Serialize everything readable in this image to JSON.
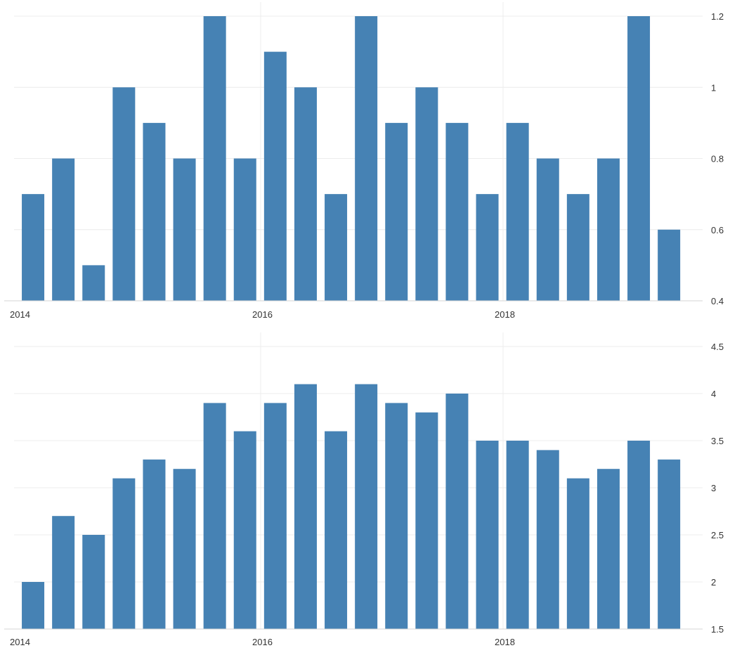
{
  "chart_data": [
    {
      "type": "bar",
      "x": [
        "2014Q1",
        "2014Q2",
        "2014Q3",
        "2014Q4",
        "2015Q1",
        "2015Q2",
        "2015Q3",
        "2015Q4",
        "2016Q1",
        "2016Q2",
        "2016Q3",
        "2016Q4",
        "2017Q1",
        "2017Q2",
        "2017Q3",
        "2017Q4",
        "2018Q1",
        "2018Q2",
        "2018Q3",
        "2018Q4",
        "2019Q1",
        "2019Q2",
        "2019Q3"
      ],
      "values": [
        0.7,
        0.8,
        0.5,
        1.0,
        0.9,
        0.8,
        1.2,
        0.8,
        1.1,
        1.0,
        0.7,
        1.2,
        0.9,
        1.0,
        0.9,
        0.7,
        0.9,
        0.8,
        0.7,
        0.8,
        1.2,
        0.6,
        null
      ],
      "ylim": [
        0.4,
        1.2
      ],
      "yticks": [
        "1.2",
        "1",
        "0.8",
        "0.6",
        "0.4"
      ],
      "xticks": [
        "2014",
        "2016",
        "2018"
      ],
      "title": "",
      "xlabel": "",
      "ylabel": "",
      "grid": true,
      "color": "#4682b4"
    },
    {
      "type": "bar",
      "x": [
        "2014Q1",
        "2014Q2",
        "2014Q3",
        "2014Q4",
        "2015Q1",
        "2015Q2",
        "2015Q3",
        "2015Q4",
        "2016Q1",
        "2016Q2",
        "2016Q3",
        "2016Q4",
        "2017Q1",
        "2017Q2",
        "2017Q3",
        "2017Q4",
        "2018Q1",
        "2018Q2",
        "2018Q3",
        "2018Q4",
        "2019Q1",
        "2019Q2",
        "2019Q3"
      ],
      "values": [
        2.0,
        2.7,
        2.5,
        3.1,
        3.3,
        3.2,
        3.9,
        3.6,
        3.9,
        4.1,
        3.6,
        4.1,
        3.9,
        3.8,
        4.0,
        3.5,
        3.5,
        3.4,
        3.1,
        3.2,
        3.5,
        3.3,
        null
      ],
      "ylim": [
        1.5,
        4.5
      ],
      "yticks": [
        "4.5",
        "4",
        "3.5",
        "3",
        "2.5",
        "2",
        "1.5"
      ],
      "xticks": [
        "2014",
        "2016",
        "2018"
      ],
      "title": "",
      "xlabel": "",
      "ylabel": "",
      "grid": true,
      "color": "#4682b4"
    }
  ]
}
